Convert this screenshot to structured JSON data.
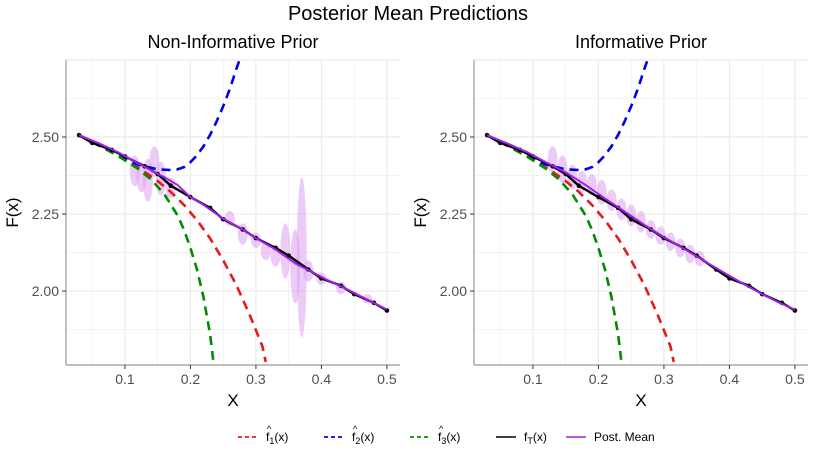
{
  "title": "Posterior Mean Predictions",
  "colors": {
    "f1": "#e41a1c",
    "f2": "#0000ee",
    "f3": "#008b00",
    "ftrue": "#000000",
    "post": "#a020f0",
    "band": "#dda0f0",
    "grid": "#ebebeb",
    "axis": "#999999"
  },
  "legend": [
    {
      "key": "f1",
      "base": "f",
      "sub": "1",
      "hat": true,
      "suffix": "(x)",
      "style": "dashed"
    },
    {
      "key": "f2",
      "base": "f",
      "sub": "2",
      "hat": true,
      "suffix": "(x)",
      "style": "dashed"
    },
    {
      "key": "f3",
      "base": "f",
      "sub": "3",
      "hat": true,
      "suffix": "(x)",
      "style": "dashed"
    },
    {
      "key": "ftrue",
      "base": "f",
      "sub": "T",
      "hat": false,
      "suffix": "(x)",
      "style": "solid"
    },
    {
      "key": "post",
      "base": "Post. Mean",
      "sub": "",
      "hat": false,
      "suffix": "",
      "style": "solid"
    }
  ],
  "chart_data": [
    {
      "type": "line",
      "title": "Non-Informative Prior",
      "xlabel": "X",
      "ylabel": "F(x)",
      "xlim": [
        0.01,
        0.52
      ],
      "ylim": [
        1.76,
        2.75
      ],
      "xticks": [
        "0.1",
        "0.2",
        "0.3",
        "0.4",
        "0.5"
      ],
      "yticks": [
        "2.00",
        "2.25",
        "2.50"
      ],
      "grid": true,
      "series": [
        {
          "name": "f1",
          "x": [
            0.03,
            0.05,
            0.07,
            0.09,
            0.11,
            0.13,
            0.15,
            0.17,
            0.19,
            0.21,
            0.23,
            0.25,
            0.27,
            0.29,
            0.31,
            0.315
          ],
          "y": [
            2.506,
            2.484,
            2.461,
            2.438,
            2.413,
            2.387,
            2.357,
            2.322,
            2.28,
            2.23,
            2.171,
            2.1,
            2.02,
            1.925,
            1.82,
            1.77
          ]
        },
        {
          "name": "f2",
          "x": [
            0.03,
            0.06,
            0.09,
            0.12,
            0.15,
            0.17,
            0.18,
            0.19,
            0.2,
            0.21,
            0.22,
            0.23,
            0.24,
            0.25,
            0.26,
            0.27,
            0.275
          ],
          "y": [
            2.506,
            2.474,
            2.44,
            2.41,
            2.395,
            2.393,
            2.395,
            2.402,
            2.418,
            2.441,
            2.47,
            2.507,
            2.55,
            2.6,
            2.655,
            2.72,
            2.75
          ]
        },
        {
          "name": "f3",
          "x": [
            0.03,
            0.06,
            0.09,
            0.12,
            0.14,
            0.16,
            0.18,
            0.19,
            0.2,
            0.21,
            0.22,
            0.23,
            0.235
          ],
          "y": [
            2.506,
            2.473,
            2.438,
            2.397,
            2.362,
            2.315,
            2.247,
            2.2,
            2.14,
            2.07,
            1.98,
            1.86,
            1.77
          ]
        },
        {
          "name": "ftrue",
          "x": [
            0.03,
            0.05,
            0.08,
            0.1,
            0.13,
            0.15,
            0.17,
            0.2,
            0.23,
            0.25,
            0.28,
            0.3,
            0.33,
            0.35,
            0.38,
            0.4,
            0.43,
            0.45,
            0.48,
            0.5
          ],
          "y": [
            2.506,
            2.481,
            2.458,
            2.437,
            2.405,
            2.38,
            2.342,
            2.305,
            2.27,
            2.233,
            2.2,
            2.172,
            2.14,
            2.115,
            2.07,
            2.041,
            2.017,
            1.99,
            1.962,
            1.937
          ],
          "markers": true
        },
        {
          "name": "post",
          "x": [
            0.03,
            0.06,
            0.09,
            0.12,
            0.14,
            0.16,
            0.18,
            0.2,
            0.22,
            0.25,
            0.28,
            0.3,
            0.33,
            0.36,
            0.38,
            0.41,
            0.44,
            0.47,
            0.5
          ],
          "y": [
            2.506,
            2.48,
            2.45,
            2.415,
            2.392,
            2.37,
            2.345,
            2.305,
            2.28,
            2.235,
            2.2,
            2.172,
            2.135,
            2.09,
            2.068,
            2.035,
            2.005,
            1.972,
            1.94
          ]
        }
      ],
      "bands": [
        {
          "x": 0.115,
          "low": 2.34,
          "high": 2.44
        },
        {
          "x": 0.125,
          "low": 2.32,
          "high": 2.42
        },
        {
          "x": 0.135,
          "low": 2.29,
          "high": 2.43
        },
        {
          "x": 0.145,
          "low": 2.37,
          "high": 2.47
        },
        {
          "x": 0.155,
          "low": 2.31,
          "high": 2.42
        },
        {
          "x": 0.17,
          "low": 2.3,
          "high": 2.37
        },
        {
          "x": 0.26,
          "low": 2.21,
          "high": 2.26
        },
        {
          "x": 0.28,
          "low": 2.15,
          "high": 2.22
        },
        {
          "x": 0.3,
          "low": 2.14,
          "high": 2.19
        },
        {
          "x": 0.315,
          "low": 2.1,
          "high": 2.16
        },
        {
          "x": 0.33,
          "low": 2.08,
          "high": 2.15
        },
        {
          "x": 0.345,
          "low": 2.04,
          "high": 2.22
        },
        {
          "x": 0.36,
          "low": 1.96,
          "high": 2.2
        },
        {
          "x": 0.37,
          "low": 1.85,
          "high": 2.37
        },
        {
          "x": 0.38,
          "low": 2.03,
          "high": 2.1
        },
        {
          "x": 0.4,
          "low": 2.02,
          "high": 2.06
        },
        {
          "x": 0.43,
          "low": 1.99,
          "high": 2.03
        },
        {
          "x": 0.47,
          "low": 1.96,
          "high": 1.99
        }
      ]
    },
    {
      "type": "line",
      "title": "Informative Prior",
      "xlabel": "X",
      "ylabel": "F(x)",
      "xlim": [
        0.01,
        0.52
      ],
      "ylim": [
        1.76,
        2.75
      ],
      "xticks": [
        "0.1",
        "0.2",
        "0.3",
        "0.4",
        "0.5"
      ],
      "yticks": [
        "2.00",
        "2.25",
        "2.50"
      ],
      "grid": true,
      "series": [
        {
          "name": "f1",
          "x": [
            0.03,
            0.05,
            0.07,
            0.09,
            0.11,
            0.13,
            0.15,
            0.17,
            0.19,
            0.21,
            0.23,
            0.25,
            0.27,
            0.29,
            0.31,
            0.315
          ],
          "y": [
            2.506,
            2.484,
            2.461,
            2.438,
            2.413,
            2.387,
            2.357,
            2.322,
            2.28,
            2.23,
            2.171,
            2.1,
            2.02,
            1.925,
            1.82,
            1.77
          ]
        },
        {
          "name": "f2",
          "x": [
            0.03,
            0.06,
            0.09,
            0.12,
            0.15,
            0.17,
            0.18,
            0.19,
            0.2,
            0.21,
            0.22,
            0.23,
            0.24,
            0.25,
            0.26,
            0.27,
            0.275
          ],
          "y": [
            2.506,
            2.474,
            2.44,
            2.41,
            2.395,
            2.393,
            2.395,
            2.402,
            2.418,
            2.441,
            2.47,
            2.507,
            2.55,
            2.6,
            2.655,
            2.72,
            2.75
          ]
        },
        {
          "name": "f3",
          "x": [
            0.03,
            0.06,
            0.09,
            0.12,
            0.14,
            0.16,
            0.18,
            0.19,
            0.2,
            0.21,
            0.22,
            0.23,
            0.235
          ],
          "y": [
            2.506,
            2.473,
            2.438,
            2.397,
            2.362,
            2.315,
            2.247,
            2.2,
            2.14,
            2.07,
            1.98,
            1.86,
            1.77
          ]
        },
        {
          "name": "ftrue",
          "x": [
            0.03,
            0.05,
            0.08,
            0.1,
            0.13,
            0.15,
            0.17,
            0.2,
            0.23,
            0.25,
            0.28,
            0.3,
            0.33,
            0.35,
            0.38,
            0.4,
            0.43,
            0.45,
            0.48,
            0.5
          ],
          "y": [
            2.506,
            2.481,
            2.458,
            2.437,
            2.405,
            2.38,
            2.342,
            2.305,
            2.27,
            2.233,
            2.2,
            2.172,
            2.14,
            2.115,
            2.07,
            2.041,
            2.017,
            1.99,
            1.962,
            1.937
          ],
          "markers": true
        },
        {
          "name": "post",
          "x": [
            0.03,
            0.06,
            0.09,
            0.12,
            0.15,
            0.18,
            0.21,
            0.24,
            0.27,
            0.3,
            0.33,
            0.36,
            0.39,
            0.42,
            0.45,
            0.48,
            0.5
          ],
          "y": [
            2.506,
            2.48,
            2.452,
            2.418,
            2.385,
            2.345,
            2.3,
            2.258,
            2.215,
            2.175,
            2.138,
            2.1,
            2.062,
            2.025,
            1.99,
            1.958,
            1.94
          ]
        }
      ],
      "bands": [
        {
          "x": 0.13,
          "low": 2.38,
          "high": 2.47
        },
        {
          "x": 0.145,
          "low": 2.35,
          "high": 2.44
        },
        {
          "x": 0.16,
          "low": 2.33,
          "high": 2.41
        },
        {
          "x": 0.175,
          "low": 2.32,
          "high": 2.39
        },
        {
          "x": 0.19,
          "low": 2.31,
          "high": 2.38
        },
        {
          "x": 0.205,
          "low": 2.28,
          "high": 2.36
        },
        {
          "x": 0.22,
          "low": 2.26,
          "high": 2.33
        },
        {
          "x": 0.235,
          "low": 2.23,
          "high": 2.3
        },
        {
          "x": 0.25,
          "low": 2.21,
          "high": 2.28
        },
        {
          "x": 0.265,
          "low": 2.19,
          "high": 2.26
        },
        {
          "x": 0.28,
          "low": 2.17,
          "high": 2.23
        },
        {
          "x": 0.295,
          "low": 2.15,
          "high": 2.21
        },
        {
          "x": 0.31,
          "low": 2.13,
          "high": 2.19
        },
        {
          "x": 0.325,
          "low": 2.11,
          "high": 2.17
        },
        {
          "x": 0.34,
          "low": 2.09,
          "high": 2.15
        },
        {
          "x": 0.355,
          "low": 2.08,
          "high": 2.13
        }
      ]
    }
  ]
}
